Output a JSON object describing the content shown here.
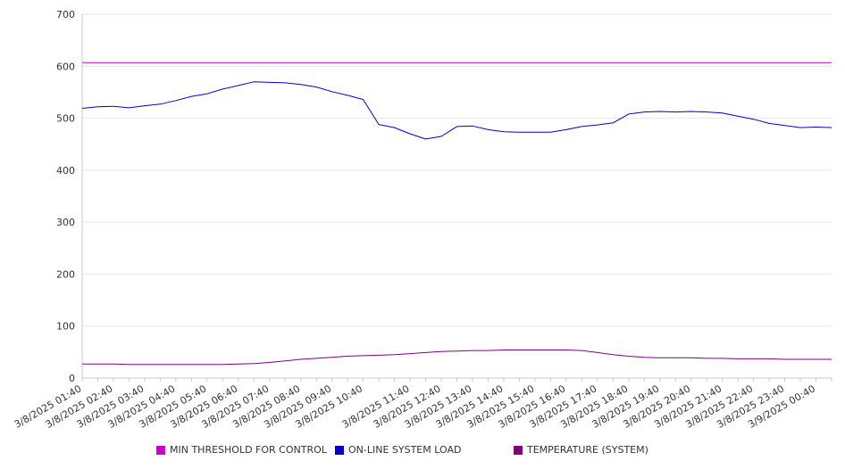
{
  "chart_data": {
    "type": "line",
    "title": "",
    "xlabel": "",
    "ylabel": "",
    "ylim": [
      0,
      700
    ],
    "y_ticks": [
      0,
      100,
      200,
      300,
      400,
      500,
      600,
      700
    ],
    "x_tick_labels": [
      "3/8/2025 01:40",
      "3/8/2025 02:40",
      "3/8/2025 03:40",
      "3/8/2025 04:40",
      "3/8/2025 05:40",
      "3/8/2025 06:40",
      "3/8/2025 07:40",
      "3/8/2025 08:40",
      "3/8/2025 09:40",
      "3/8/2025 10:40",
      "3/8/2025 11:40",
      "3/8/2025 12:40",
      "3/8/2025 13:40",
      "3/8/2025 14:40",
      "3/8/2025 15:40",
      "3/8/2025 16:40",
      "3/8/2025 17:40",
      "3/8/2025 18:40",
      "3/8/2025 19:40",
      "3/8/2025 20:40",
      "3/8/2025 21:40",
      "3/8/2025 22:40",
      "3/8/2025 23:40",
      "3/9/2025 00:40"
    ],
    "x": [
      "3/8/2025 01:40",
      "3/8/2025 02:10",
      "3/8/2025 02:40",
      "3/8/2025 03:10",
      "3/8/2025 03:40",
      "3/8/2025 04:10",
      "3/8/2025 04:40",
      "3/8/2025 05:10",
      "3/8/2025 05:40",
      "3/8/2025 06:10",
      "3/8/2025 06:40",
      "3/8/2025 07:10",
      "3/8/2025 07:40",
      "3/8/2025 08:10",
      "3/8/2025 08:40",
      "3/8/2025 09:10",
      "3/8/2025 09:40",
      "3/8/2025 10:10",
      "3/8/2025 10:40",
      "3/8/2025 10:50",
      "3/8/2025 11:10",
      "3/8/2025 11:40",
      "3/8/2025 12:10",
      "3/8/2025 12:40",
      "3/8/2025 13:10",
      "3/8/2025 13:40",
      "3/8/2025 14:10",
      "3/8/2025 14:40",
      "3/8/2025 15:10",
      "3/8/2025 15:40",
      "3/8/2025 16:10",
      "3/8/2025 16:40",
      "3/8/2025 17:10",
      "3/8/2025 17:40",
      "3/8/2025 18:10",
      "3/8/2025 18:40",
      "3/8/2025 19:10",
      "3/8/2025 19:40",
      "3/8/2025 20:10",
      "3/8/2025 20:40",
      "3/8/2025 21:10",
      "3/8/2025 21:40",
      "3/8/2025 22:10",
      "3/8/2025 22:40",
      "3/8/2025 23:10",
      "3/8/2025 23:40",
      "3/9/2025 00:10",
      "3/9/2025 00:40",
      "3/9/2025 01:10"
    ],
    "series": [
      {
        "name": "MIN THRESHOLD FOR CONTROL",
        "color": "#cc00cc",
        "values": [
          607,
          607,
          607,
          607,
          607,
          607,
          607,
          607,
          607,
          607,
          607,
          607,
          607,
          607,
          607,
          607,
          607,
          607,
          607,
          607,
          607,
          607,
          607,
          607,
          607,
          607,
          607,
          607,
          607,
          607,
          607,
          607,
          607,
          607,
          607,
          607,
          607,
          607,
          607,
          607,
          607,
          607,
          607,
          607,
          607,
          607,
          607,
          607,
          607
        ]
      },
      {
        "name": "ON-LINE SYSTEM LOAD",
        "color": "#0000cc",
        "values": [
          519,
          522,
          523,
          520,
          524,
          527,
          534,
          542,
          547,
          556,
          563,
          570,
          569,
          568,
          565,
          560,
          551,
          544,
          536,
          488,
          482,
          470,
          460,
          465,
          484,
          485,
          478,
          474,
          473,
          473,
          473,
          478,
          484,
          487,
          491,
          508,
          512,
          513,
          512,
          513,
          512,
          510,
          504,
          498,
          490,
          486,
          482,
          483,
          482
        ]
      },
      {
        "name": "TEMPERATURE (SYSTEM)",
        "color": "#800080",
        "values": [
          27,
          27,
          27,
          26,
          26,
          26,
          26,
          26,
          26,
          26,
          27,
          28,
          30,
          33,
          36,
          38,
          40,
          42,
          43,
          44,
          45,
          47,
          49,
          51,
          52,
          53,
          53,
          54,
          54,
          54,
          54,
          54,
          53,
          49,
          45,
          42,
          40,
          39,
          39,
          39,
          38,
          38,
          37,
          37,
          37,
          36,
          36,
          36,
          36
        ]
      }
    ],
    "grid": true,
    "legend_position": "bottom"
  }
}
